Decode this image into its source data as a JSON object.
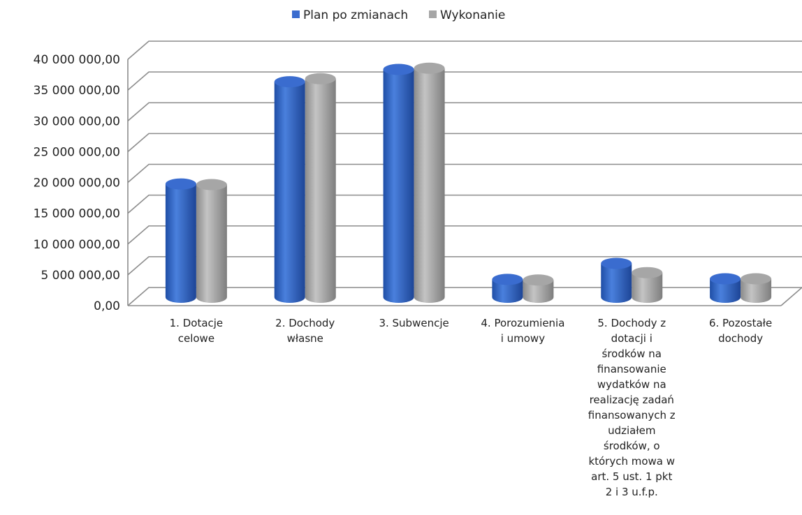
{
  "chart_data": {
    "type": "bar",
    "categories": [
      "1. Dotacje\ncelowe",
      "2. Dochody\nwłasne",
      "3. Subwencje",
      "4. Porozumienia\ni umowy",
      "5. Dochody z\ndotacji i\nśrodków  na\nfinansowanie\nwydatków na\nrealizację zadań\nfinansowanych z\nudziałem\nśrodków, o\nktórych mowa w\nart. 5 ust. 1 pkt\n2 i 3 u.f.p.",
      "6. Pozostałe\ndochody"
    ],
    "series": [
      {
        "name": "Plan po zmianach",
        "color": "#3a6ccf",
        "values": [
          18400000,
          35000000,
          37000000,
          2900000,
          5500000,
          3000000
        ]
      },
      {
        "name": "Wykonanie",
        "color": "#a6a6a6",
        "values": [
          18300000,
          35500000,
          37200000,
          2800000,
          4000000,
          3000000
        ]
      }
    ],
    "ylim": [
      0,
      40000000
    ],
    "yticks": [
      "0,00",
      "5 000 000,00",
      "10 000 000,00",
      "15 000 000,00",
      "20 000 000,00",
      "25 000 000,00",
      "30 000 000,00",
      "35 000 000,00",
      "40 000 000,00"
    ],
    "grid": true,
    "legend_position": "top-center",
    "style": "3d-cylinder"
  }
}
